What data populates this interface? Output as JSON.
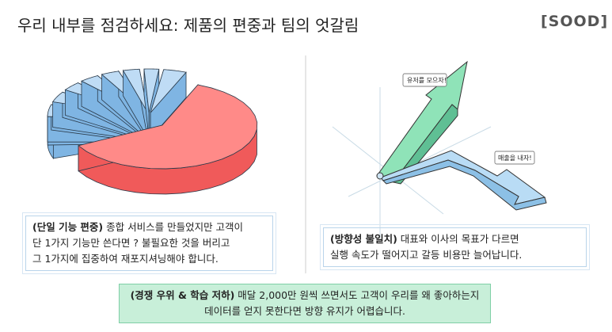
{
  "header": {
    "title": "우리 내부를 점검하세요: 제품의 편중과 팀의 엇갈림",
    "logo": "[SOOD]"
  },
  "left": {
    "caption_bold": "(단일 기능 편중)",
    "caption_lines": [
      "종합 서비스를 만들었지만 고객이",
      "단 1가지 기능만 쓴다면 ? 불필요한 것을 버리고",
      "그 1가지에 집중하여 재포지셔닝해야 합니다."
    ]
  },
  "right": {
    "labels": [
      "유저를 모으자!",
      "매출을 내자!"
    ],
    "caption_bold": "(방향성 불일치)",
    "caption_lines": [
      "대표와 이사의 목표가 다르면",
      "실행 속도가 떨어지고 갈등 비용만 늘어납니다."
    ]
  },
  "footer": {
    "bold": "(경쟁 우위 & 학습 저하)",
    "lines": [
      "매달 2,000만 원씩 쓰면서도 고객이 우리를 왜 좋아하는지",
      "데이터를 얻지 못한다면 방향 유지가 어렵습니다."
    ]
  }
}
